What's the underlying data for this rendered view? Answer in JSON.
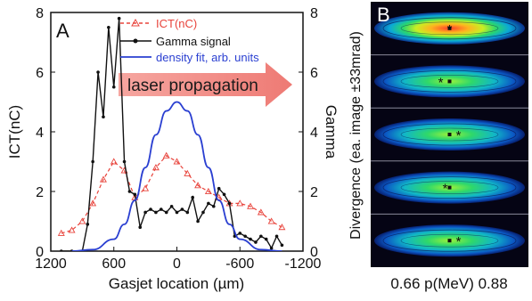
{
  "panel_a": {
    "label": "A",
    "arrow_text": "laser propagation",
    "legend": [
      {
        "label": "ICT(nC)",
        "color": "#e8433b"
      },
      {
        "label": "Gamma signal",
        "color": "#111111"
      },
      {
        "label": "density fit, arb. units",
        "color": "#2a3fd1"
      }
    ],
    "y_left_label": "ICT(nC)",
    "y_right_label": "Gamma",
    "x_label": "Gasjet location (µm)",
    "y_left_ticks": [
      "0",
      "2",
      "4",
      "6",
      "8"
    ],
    "y_right_ticks": [
      "0",
      "2",
      "4",
      "6",
      "8"
    ],
    "x_ticks": [
      "1200",
      "600",
      "0",
      "-600",
      "-1200"
    ]
  },
  "panel_b": {
    "label": "B",
    "y_label": "Divergence (ea. image ±33mrad)",
    "x_label": "0.66 p(MeV) 0.88",
    "markers": [
      "*",
      "*",
      "*",
      "*",
      "*"
    ]
  },
  "chart_data": [
    {
      "type": "line",
      "xlabel": "Gasjet location (µm)",
      "ylabel": "ICT(nC)",
      "y2label": "Gamma",
      "xlim": [
        1200,
        -1200
      ],
      "ylim": [
        0,
        8
      ],
      "y2lim": [
        0,
        8
      ],
      "x_reversed": true,
      "series": [
        {
          "name": "ICT(nC)",
          "color": "#e8433b",
          "style": "dashed line with open triangles",
          "x": [
            1100,
            1000,
            900,
            800,
            700,
            600,
            500,
            400,
            300,
            200,
            100,
            0,
            -100,
            -200,
            -300,
            -400,
            -500,
            -600,
            -700,
            -800,
            -900,
            -1000
          ],
          "y": [
            0.6,
            0.7,
            1.0,
            1.6,
            2.4,
            3.0,
            2.7,
            1.8,
            2.1,
            2.8,
            3.2,
            3.0,
            2.6,
            2.2,
            2.0,
            1.8,
            1.6,
            1.6,
            1.5,
            1.3,
            1.0,
            0.8
          ]
        },
        {
          "name": "Gamma signal",
          "color": "#111111",
          "axis": "right",
          "x": [
            1100,
            1000,
            900,
            850,
            800,
            750,
            700,
            650,
            600,
            550,
            500,
            450,
            400,
            350,
            300,
            250,
            200,
            150,
            100,
            50,
            0,
            -50,
            -100,
            -150,
            -200,
            -250,
            -300,
            -350,
            -400,
            -450,
            -500,
            -550,
            -600,
            -650,
            -700,
            -750,
            -800,
            -850,
            -900,
            -950,
            -1000
          ],
          "y": [
            0.0,
            0.0,
            0.0,
            0.9,
            3.0,
            6.0,
            4.5,
            7.5,
            5.5,
            7.8,
            3.0,
            2.0,
            1.9,
            0.8,
            1.3,
            1.4,
            1.3,
            1.4,
            1.3,
            1.5,
            1.3,
            1.4,
            1.3,
            1.8,
            1.0,
            1.3,
            1.6,
            1.5,
            2.1,
            1.9,
            1.6,
            0.5,
            0.6,
            0.5,
            0.4,
            0.3,
            0.5,
            0.4,
            0.1,
            0.5,
            0.2
          ]
        },
        {
          "name": "density fit, arb. units",
          "color": "#2a3fd1",
          "x": [
            1000,
            800,
            600,
            500,
            400,
            300,
            200,
            100,
            0,
            -100,
            -200,
            -300,
            -400,
            -500,
            -600,
            -800,
            -1000
          ],
          "y": [
            0.0,
            0.05,
            0.4,
            0.9,
            1.7,
            2.8,
            3.9,
            4.7,
            5.0,
            4.7,
            3.9,
            2.8,
            1.7,
            0.9,
            0.4,
            0.05,
            0.0
          ]
        }
      ]
    }
  ]
}
